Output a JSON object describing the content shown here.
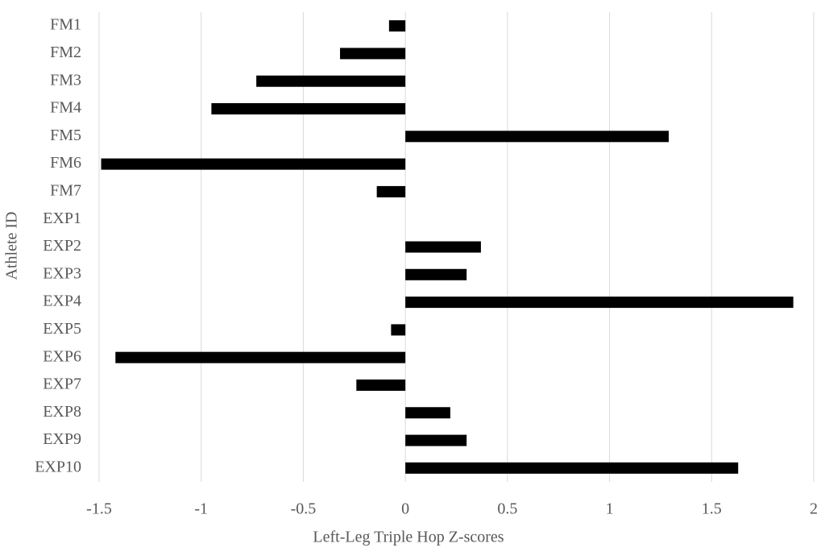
{
  "chart_data": {
    "type": "bar",
    "orientation": "horizontal",
    "x_label": "Left-Leg Triple Hop Z-scores",
    "y_label": "Athlete ID",
    "categories": [
      "FM1",
      "FM2",
      "FM3",
      "FM4",
      "FM5",
      "FM6",
      "FM7",
      "EXP1",
      "EXP2",
      "EXP3",
      "EXP4",
      "EXP5",
      "EXP6",
      "EXP7",
      "EXP8",
      "EXP9",
      "EXP10"
    ],
    "values": [
      -0.08,
      -0.32,
      -0.73,
      -0.95,
      1.29,
      -1.49,
      -0.14,
      0,
      0.37,
      0.3,
      1.9,
      -0.07,
      -1.42,
      -0.24,
      0.22,
      0.3,
      1.63
    ],
    "color": "#000000",
    "xlim": [
      -1.5,
      2
    ],
    "xticks": [
      -1.5,
      -1,
      -0.5,
      0,
      0.5,
      1,
      1.5,
      2
    ],
    "grid": true
  }
}
